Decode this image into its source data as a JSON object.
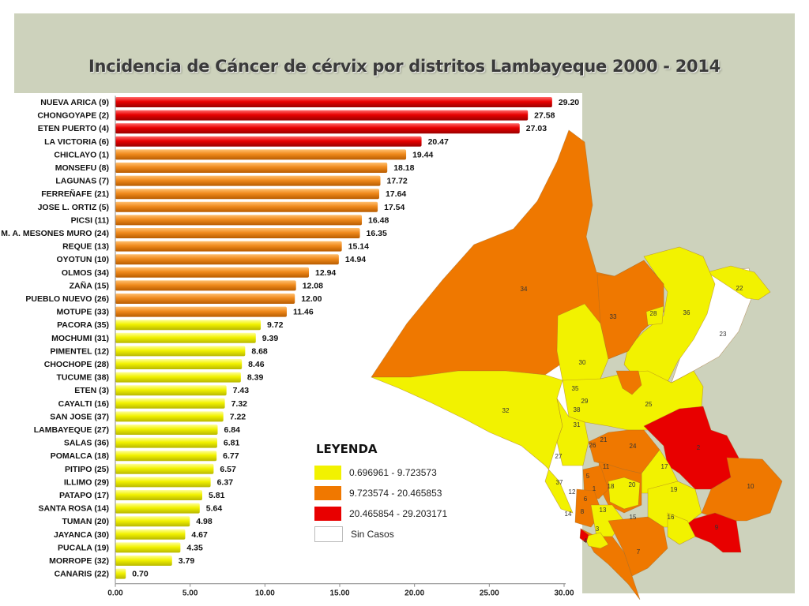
{
  "title": "Incidencia de Cáncer de cérvix por distritos Lambayeque 2000 - 2014",
  "chart_data": {
    "type": "bar",
    "orientation": "horizontal",
    "title": "Incidencia de Cáncer de cérvix por distritos Lambayeque 2000 - 2014",
    "categories": [
      "NUEVA ARICA (9)",
      "CHONGOYAPE (2)",
      "ETEN PUERTO (4)",
      "LA VICTORIA (6)",
      "CHICLAYO (1)",
      "MONSEFU (8)",
      "LAGUNAS (7)",
      "FERREÑAFE (21)",
      "JOSE L. ORTIZ (5)",
      "PICSI (11)",
      "M. A. MESONES MURO (24)",
      "REQUE (13)",
      "OYOTUN (10)",
      "OLMOS (34)",
      "ZAÑA (15)",
      "PUEBLO NUEVO (26)",
      "MOTUPE (33)",
      "PACORA (35)",
      "MOCHUMI (31)",
      "PIMENTEL (12)",
      "CHOCHOPE (28)",
      "TUCUME (38)",
      "ETEN (3)",
      "CAYALTI (16)",
      "SAN JOSE (37)",
      "LAMBAYEQUE (27)",
      "SALAS (36)",
      "POMALCA (18)",
      "PITIPO (25)",
      "ILLIMO (29)",
      "PATAPO (17)",
      "SANTA ROSA (14)",
      "TUMAN (20)",
      "JAYANCA (30)",
      "PUCALA (19)",
      "MORROPE (32)",
      "CANARIS (22)"
    ],
    "values": [
      29.2,
      27.58,
      27.03,
      20.47,
      19.44,
      18.18,
      17.72,
      17.64,
      17.54,
      16.48,
      16.35,
      15.14,
      14.94,
      12.94,
      12.08,
      12.0,
      11.46,
      9.72,
      9.39,
      8.68,
      8.46,
      8.39,
      7.43,
      7.32,
      7.22,
      6.84,
      6.81,
      6.77,
      6.57,
      6.37,
      5.81,
      5.64,
      4.98,
      4.67,
      4.35,
      3.79,
      0.7
    ],
    "value_labels": [
      "29.20",
      "27.58",
      "27.03",
      "20.47",
      "19.44",
      "18.18",
      "17.72",
      "17.64",
      "17.54",
      "16.48",
      "16.35",
      "15.14",
      "14.94",
      "12.94",
      "12.08",
      "12.00",
      "11.46",
      "9.72",
      "9.39",
      "8.68",
      "8.46",
      "8.39",
      "7.43",
      "7.32",
      "7.22",
      "6.84",
      "6.81",
      "6.77",
      "6.57",
      "6.37",
      "5.81",
      "5.64",
      "4.98",
      "4.67",
      "4.35",
      "3.79",
      "0.70"
    ],
    "xlim": [
      0,
      30
    ],
    "x_ticks": [
      0,
      5,
      10,
      15,
      20,
      25,
      30
    ],
    "x_tick_labels": [
      "0.00",
      "5.00",
      "10.00",
      "15.00",
      "20.00",
      "25.00",
      "30.00"
    ],
    "grid": false,
    "color_scale": [
      {
        "label": "0.696961 - 9.723573",
        "min": 0.696961,
        "max": 9.723573,
        "color": "#f2f200"
      },
      {
        "label": "9.723574 - 20.465853",
        "min": 9.723574,
        "max": 20.465853,
        "color": "#f07800"
      },
      {
        "label": "20.465854 - 29.203171",
        "min": 20.465854,
        "max": 29.203171,
        "color": "#e80000"
      }
    ]
  },
  "legend": {
    "title": "LEYENDA",
    "items": [
      {
        "label": "0.696961 - 9.723573",
        "color": "#f2f200"
      },
      {
        "label": "9.723574 - 20.465853",
        "color": "#f07800"
      },
      {
        "label": "20.465854 - 29.203171",
        "color": "#e80000"
      },
      {
        "label": "Sin Casos",
        "color": "#ffffff"
      }
    ]
  },
  "map": {
    "district_labels": [
      "34",
      "33",
      "28",
      "36",
      "22",
      "23",
      "30",
      "35",
      "29",
      "38",
      "32",
      "25",
      "31",
      "21",
      "26",
      "24",
      "2",
      "27",
      "11",
      "5",
      "17",
      "37",
      "12",
      "1",
      "18",
      "20",
      "19",
      "10",
      "6",
      "14",
      "8",
      "13",
      "15",
      "16",
      "9",
      "3",
      "7",
      "4"
    ],
    "colors": {
      "yellow": "#f2f200",
      "orange": "#ef7800",
      "red": "#e80000",
      "none": "#ffffff",
      "border": "#a06a2a"
    }
  }
}
